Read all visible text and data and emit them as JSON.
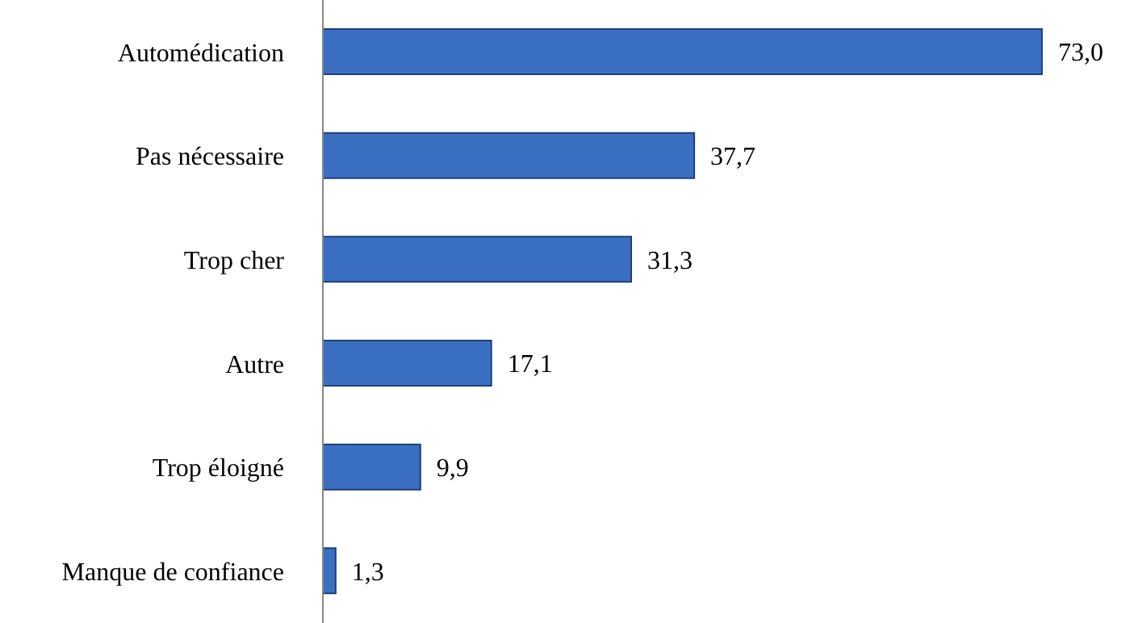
{
  "chart_data": {
    "type": "bar",
    "orientation": "horizontal",
    "categories": [
      "Automédication",
      "Pas nécessaire",
      "Trop cher",
      "Autre",
      "Trop éloigné",
      "Manque de confiance"
    ],
    "values": [
      73.0,
      37.7,
      31.3,
      17.1,
      9.9,
      1.3
    ],
    "value_labels": [
      "73,0",
      "37,7",
      "31,3",
      "17,1",
      "9,9",
      "1,3"
    ],
    "color": "#3b6fc2",
    "grid": false,
    "legend": false
  }
}
